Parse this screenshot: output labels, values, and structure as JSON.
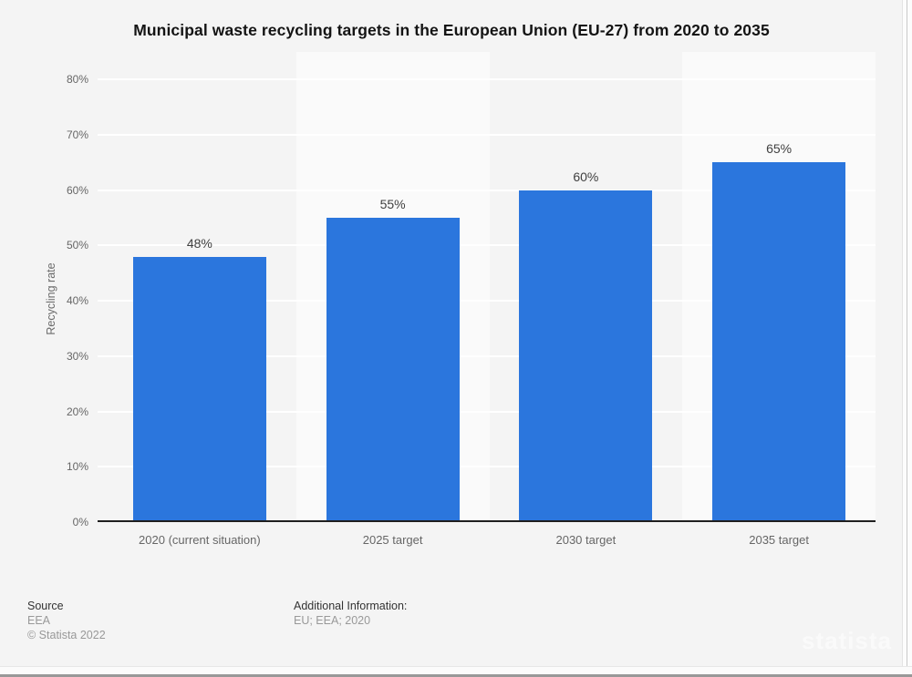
{
  "title": "Municipal waste recycling targets in the European Union (EU-27) from 2020 to 2035",
  "chart_data": {
    "type": "bar",
    "title": "Municipal waste recycling targets in the European Union (EU-27) from 2020 to 2035",
    "categories": [
      "2020 (current situation)",
      "2025 target",
      "2030 target",
      "2035 target"
    ],
    "values": [
      48,
      55,
      60,
      65
    ],
    "value_labels": [
      "48%",
      "55%",
      "60%",
      "65%"
    ],
    "xlabel": "",
    "ylabel": "Recycling rate",
    "ylim": [
      0,
      85
    ],
    "yticks": [
      0,
      10,
      20,
      30,
      40,
      50,
      60,
      70,
      80
    ],
    "ytick_labels": [
      "0%",
      "10%",
      "20%",
      "30%",
      "40%",
      "50%",
      "60%",
      "70%",
      "80%"
    ],
    "grid": true,
    "legend": false,
    "bar_color": "#2b76dd",
    "band_colors": [
      "#f4f4f4",
      "#fafafa"
    ],
    "grid_color": "#ffffff",
    "axis_color": "#1f1f1f"
  },
  "footer": {
    "source_label": "Source",
    "source_name": "EEA",
    "copyright": "© Statista 2022",
    "additional_label": "Additional Information:",
    "additional_value": "EU; EEA; 2020"
  },
  "watermark": "statista"
}
